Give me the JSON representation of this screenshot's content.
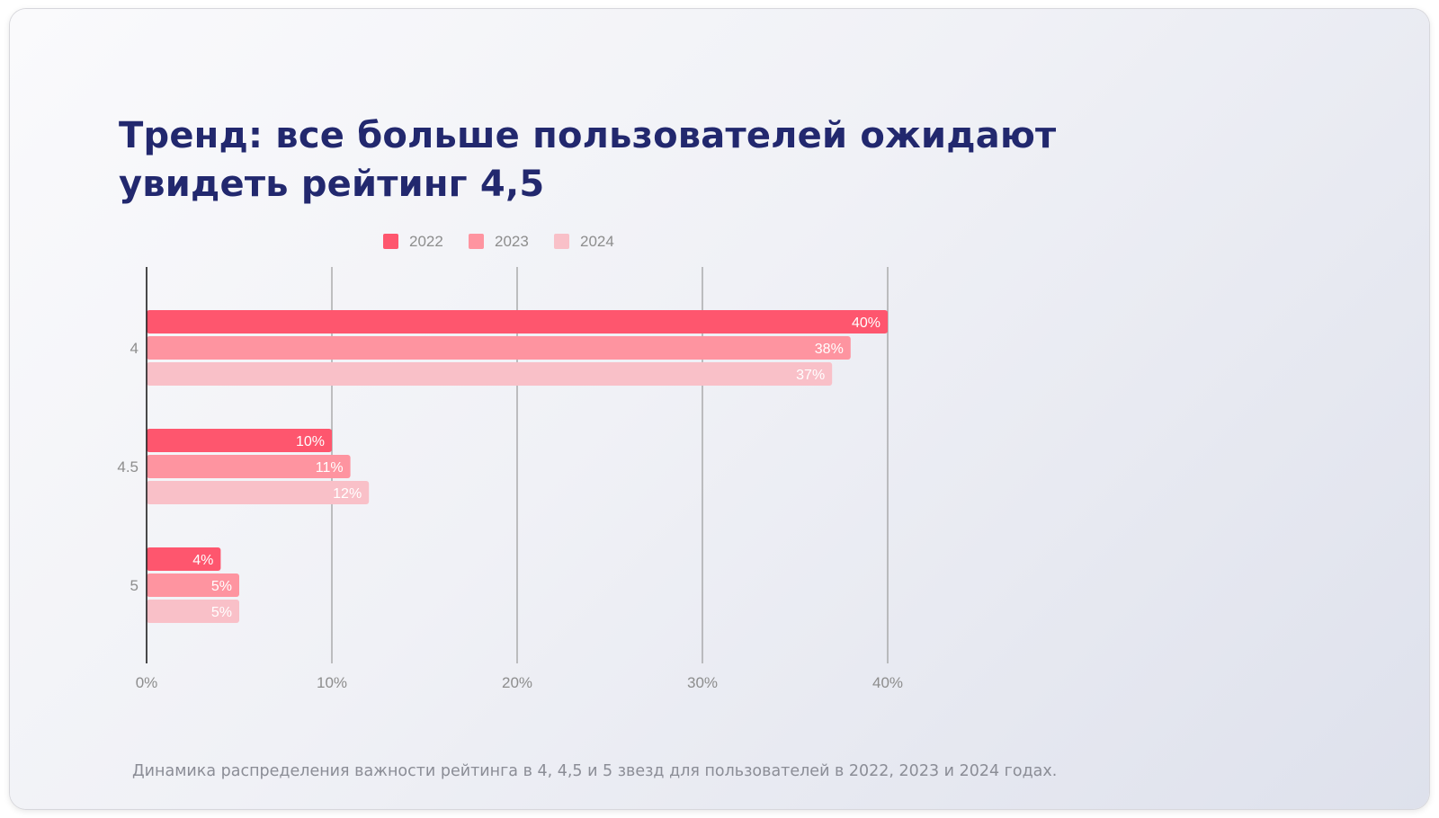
{
  "slide": {
    "title_line1": "Тренд: все больше пользователей ожидают",
    "title_line2": "увидеть рейтинг 4,5",
    "caption": "Динамика распределения важности рейтинга в 4, 4,5 и 5 звезд для пользователей в 2022, 2023 и 2024 годах."
  },
  "chart_data": {
    "type": "bar",
    "orientation": "horizontal",
    "categories": [
      "4",
      "4.5",
      "5"
    ],
    "series": [
      {
        "name": "2022",
        "color": "#fe566e",
        "values": [
          40,
          10,
          4
        ],
        "labels": [
          "40%",
          "10%",
          "4%"
        ]
      },
      {
        "name": "2023",
        "color": "#fe94a0",
        "values": [
          38,
          11,
          5
        ],
        "labels": [
          "38%",
          "11%",
          "5%"
        ]
      },
      {
        "name": "2024",
        "color": "#f9c0c8",
        "values": [
          37,
          12,
          5
        ],
        "labels": [
          "37%",
          "12%",
          "5%"
        ]
      }
    ],
    "x_ticks": [
      0,
      10,
      20,
      30,
      40
    ],
    "x_tick_labels": [
      "0%",
      "10%",
      "20%",
      "30%",
      "40%"
    ],
    "xlim": [
      0,
      40
    ],
    "grid": true,
    "legend_position": "top",
    "xlabel": "",
    "ylabel": ""
  }
}
